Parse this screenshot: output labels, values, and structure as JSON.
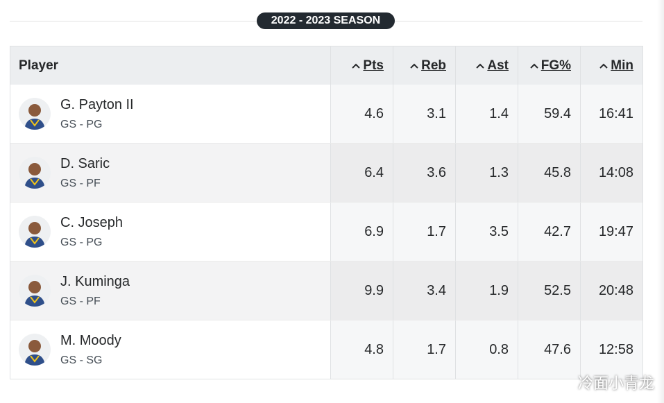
{
  "season": "2022 - 2023 SEASON",
  "table": {
    "headers": [
      "Player",
      "Pts",
      "Reb",
      "Ast",
      "FG%",
      "Min"
    ],
    "rows": [
      {
        "name": "G. Payton II",
        "team_pos": "GS - PG",
        "stats": [
          4.6,
          3.1,
          1.4,
          59.4,
          "16:41"
        ]
      },
      {
        "name": "D. Saric",
        "team_pos": "GS - PF",
        "stats": [
          6.4,
          3.6,
          1.3,
          45.8,
          "14:08"
        ]
      },
      {
        "name": "C. Joseph",
        "team_pos": "GS - PG",
        "stats": [
          6.9,
          1.7,
          3.5,
          42.7,
          "19:47"
        ]
      },
      {
        "name": "J. Kuminga",
        "team_pos": "GS - PF",
        "stats": [
          9.9,
          3.4,
          1.9,
          52.5,
          "20:48"
        ]
      },
      {
        "name": "M. Moody",
        "team_pos": "GS - SG",
        "stats": [
          4.8,
          1.7,
          0.8,
          47.6,
          "12:58"
        ]
      }
    ]
  },
  "watermark": "冷面小青龙"
}
